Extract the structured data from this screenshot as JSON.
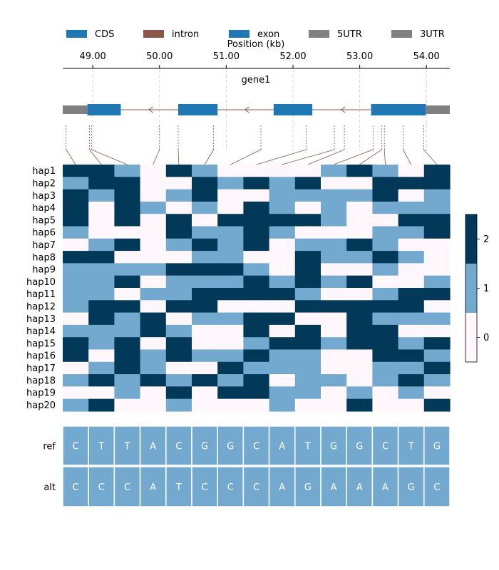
{
  "chart_data": {
    "type": "heatmap",
    "legend": {
      "placement": "top",
      "items": [
        {
          "label": "CDS",
          "color": "#1f77b4"
        },
        {
          "label": "intron",
          "color": "#8c564b"
        },
        {
          "label": "exon",
          "color": "#1f77b4"
        },
        {
          "label": "5UTR",
          "color": "#808080"
        },
        {
          "label": "3UTR",
          "color": "#808080"
        }
      ]
    },
    "position_axis": {
      "label": "Position (kb)",
      "range": [
        48.55,
        54.35
      ],
      "ticks": [
        49.0,
        50.0,
        51.0,
        52.0,
        53.0,
        54.0
      ],
      "tick_labels": [
        "49.00",
        "50.00",
        "51.00",
        "52.00",
        "53.00",
        "54.00"
      ],
      "grid": true
    },
    "gene": {
      "name": "gene1",
      "strand": "-",
      "features": [
        {
          "type": "5UTR",
          "start": 48.55,
          "end": 48.92
        },
        {
          "type": "CDS",
          "start": 48.92,
          "end": 49.42
        },
        {
          "type": "intron",
          "start": 49.42,
          "end": 50.28
        },
        {
          "type": "CDS",
          "start": 50.28,
          "end": 50.87
        },
        {
          "type": "intron",
          "start": 50.87,
          "end": 51.71
        },
        {
          "type": "CDS",
          "start": 51.71,
          "end": 52.29
        },
        {
          "type": "intron",
          "start": 52.29,
          "end": 53.17
        },
        {
          "type": "CDS",
          "start": 53.17,
          "end": 53.99
        },
        {
          "type": "3UTR",
          "start": 53.99,
          "end": 54.35
        }
      ],
      "intron_color": "#8c564b",
      "cds_color": "#1f77b4",
      "utr_color": "#808080"
    },
    "variant_positions": [
      48.6,
      48.95,
      48.98,
      50.0,
      50.28,
      50.81,
      51.52,
      52.2,
      52.62,
      52.77,
      53.2,
      53.33,
      53.37,
      53.65,
      53.96
    ],
    "haplotypes": [
      "hap1",
      "hap2",
      "hap3",
      "hap4",
      "hap5",
      "hap6",
      "hap7",
      "hap8",
      "hap9",
      "hap10",
      "hap11",
      "hap12",
      "hap13",
      "hap14",
      "hap15",
      "hap16",
      "hap17",
      "hap18",
      "hap19",
      "hap20"
    ],
    "genotypes": [
      [
        2,
        2,
        1,
        0,
        2,
        1,
        0,
        0,
        0,
        0,
        1,
        2,
        1,
        0,
        2
      ],
      [
        1,
        2,
        2,
        0,
        0,
        2,
        1,
        2,
        1,
        2,
        0,
        0,
        2,
        2,
        2
      ],
      [
        2,
        1,
        2,
        0,
        1,
        2,
        0,
        0,
        1,
        1,
        1,
        1,
        2,
        0,
        1
      ],
      [
        2,
        0,
        2,
        1,
        0,
        1,
        0,
        2,
        1,
        0,
        1,
        0,
        1,
        1,
        1
      ],
      [
        2,
        0,
        2,
        0,
        2,
        0,
        2,
        2,
        2,
        2,
        1,
        0,
        0,
        2,
        2
      ],
      [
        1,
        0,
        0,
        0,
        2,
        1,
        1,
        2,
        1,
        0,
        0,
        0,
        1,
        1,
        2
      ],
      [
        0,
        1,
        2,
        0,
        1,
        2,
        1,
        2,
        0,
        1,
        1,
        2,
        1,
        0,
        0
      ],
      [
        2,
        2,
        0,
        0,
        0,
        1,
        1,
        0,
        0,
        2,
        1,
        1,
        2,
        1,
        0
      ],
      [
        1,
        1,
        1,
        1,
        2,
        2,
        2,
        1,
        0,
        2,
        0,
        0,
        1,
        0,
        0
      ],
      [
        1,
        1,
        2,
        0,
        1,
        1,
        1,
        2,
        1,
        2,
        1,
        2,
        0,
        0,
        1
      ],
      [
        1,
        1,
        0,
        1,
        1,
        2,
        2,
        2,
        2,
        1,
        0,
        0,
        1,
        2,
        2
      ],
      [
        1,
        2,
        2,
        0,
        2,
        2,
        0,
        0,
        0,
        2,
        2,
        2,
        2,
        2,
        0
      ],
      [
        0,
        2,
        1,
        2,
        0,
        1,
        1,
        2,
        2,
        0,
        0,
        2,
        1,
        1,
        1
      ],
      [
        1,
        1,
        1,
        2,
        1,
        0,
        0,
        2,
        0,
        2,
        0,
        2,
        2,
        0,
        0
      ],
      [
        2,
        1,
        2,
        0,
        2,
        0,
        0,
        1,
        2,
        2,
        1,
        2,
        2,
        1,
        2
      ],
      [
        2,
        0,
        2,
        1,
        2,
        1,
        1,
        2,
        1,
        1,
        0,
        0,
        2,
        2,
        1
      ],
      [
        0,
        1,
        2,
        1,
        0,
        0,
        2,
        1,
        1,
        1,
        0,
        0,
        1,
        1,
        2
      ],
      [
        1,
        2,
        1,
        2,
        1,
        2,
        1,
        2,
        0,
        1,
        1,
        0,
        1,
        2,
        1
      ],
      [
        0,
        0,
        1,
        0,
        2,
        0,
        2,
        2,
        1,
        1,
        0,
        1,
        0,
        1,
        0
      ],
      [
        1,
        2,
        0,
        0,
        1,
        0,
        0,
        0,
        1,
        0,
        0,
        2,
        0,
        0,
        2
      ]
    ],
    "colorbar": {
      "ticks": [
        0,
        1,
        2
      ],
      "tick_labels": [
        "0",
        "1",
        "2"
      ],
      "colors": [
        "#fff7fb",
        "#74a9cf",
        "#023858"
      ]
    },
    "alleles": {
      "row_labels": [
        "ref",
        "alt"
      ],
      "ref": [
        "C",
        "T",
        "T",
        "A",
        "C",
        "G",
        "G",
        "C",
        "A",
        "T",
        "G",
        "G",
        "C",
        "T",
        "G"
      ],
      "alt": [
        "C",
        "C",
        "C",
        "A",
        "T",
        "C",
        "C",
        "C",
        "A",
        "G",
        "A",
        "A",
        "A",
        "G",
        "C"
      ],
      "cell_color": "#74a9cf"
    }
  }
}
